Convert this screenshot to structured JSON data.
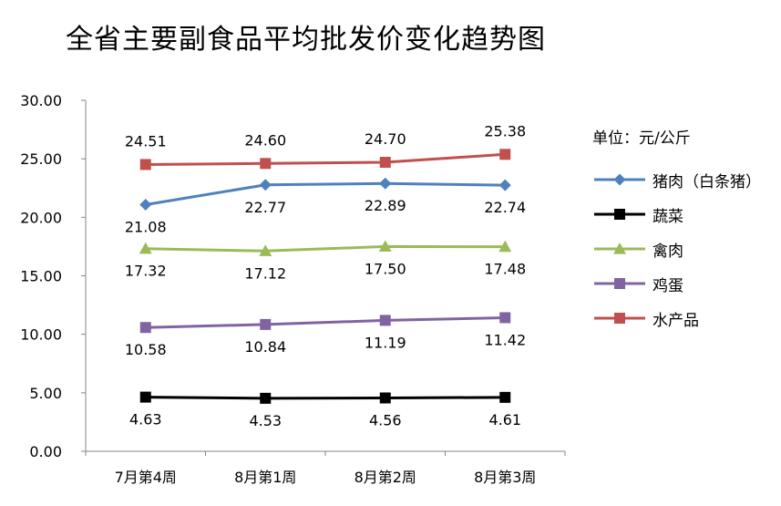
{
  "chart_data": {
    "type": "line",
    "title": "全省主要副食品平均批发价变化趋势图",
    "unit_label": "单位：元/公斤",
    "categories": [
      "7月第4周",
      "8月第1周",
      "8月第2周",
      "8月第3周"
    ],
    "ylim": [
      0,
      30
    ],
    "yticks": [
      "0.00",
      "5.00",
      "10.00",
      "15.00",
      "20.00",
      "25.00",
      "30.00"
    ],
    "grid": false,
    "legend": "right",
    "series": [
      {
        "name": "猪肉（白条猪）",
        "marker": "diamond",
        "color": "#4F81BD",
        "label_pos": "below",
        "values": [
          21.08,
          22.77,
          22.89,
          22.74
        ],
        "labels": [
          "21.08",
          "22.77",
          "22.89",
          "22.74"
        ]
      },
      {
        "name": "蔬菜",
        "marker": "square",
        "color": "#000000",
        "label_pos": "below",
        "values": [
          4.63,
          4.53,
          4.56,
          4.61
        ],
        "labels": [
          "4.63",
          "4.53",
          "4.56",
          "4.61"
        ]
      },
      {
        "name": "禽肉",
        "marker": "triangle",
        "color": "#9BBB59",
        "label_pos": "below",
        "values": [
          17.32,
          17.12,
          17.5,
          17.48
        ],
        "labels": [
          "17.32",
          "17.12",
          "17.50",
          "17.48"
        ]
      },
      {
        "name": "鸡蛋",
        "marker": "square",
        "color": "#8064A2",
        "label_pos": "below",
        "values": [
          10.58,
          10.84,
          11.19,
          11.42
        ],
        "labels": [
          "10.58",
          "10.84",
          "11.19",
          "11.42"
        ]
      },
      {
        "name": "水产品",
        "marker": "square",
        "color": "#C0504D",
        "label_pos": "above",
        "values": [
          24.51,
          24.6,
          24.7,
          25.38
        ],
        "labels": [
          "24.51",
          "24.60",
          "24.70",
          "25.38"
        ]
      }
    ]
  }
}
